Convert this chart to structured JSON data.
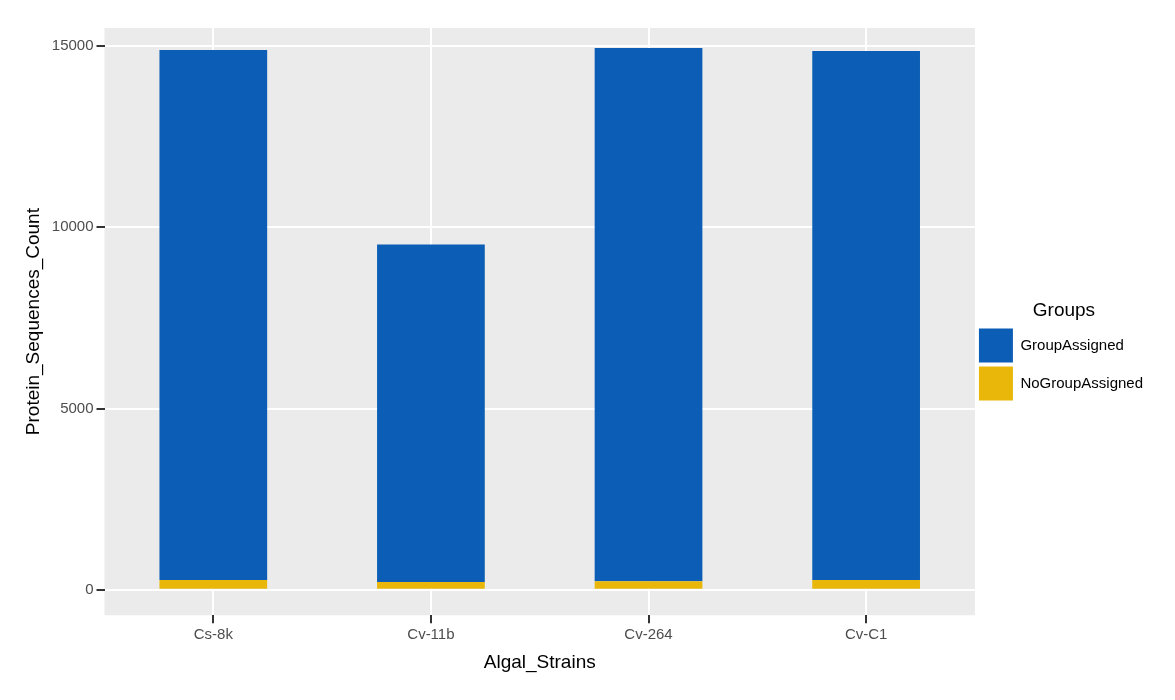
{
  "chart_data": {
    "type": "bar",
    "stacked": true,
    "xlabel": "Algal_Strains",
    "ylabel": "Protein_Sequences_Count",
    "legend_title": "Groups",
    "legend": "right",
    "categories": [
      "Cs-8k",
      "Cv-11b",
      "Cv-264",
      "Cv-C1"
    ],
    "series": [
      {
        "name": "NoGroupAssigned",
        "color": "#e8b70a",
        "values": [
          270,
          215,
          240,
          270
        ]
      },
      {
        "name": "GroupAssigned",
        "color": "#0c5db5",
        "values": [
          14620,
          9310,
          14705,
          14595
        ]
      }
    ],
    "ylim": [
      -700,
      15500
    ],
    "yticks": [
      0,
      5000,
      10000,
      15000
    ],
    "grid": true
  }
}
